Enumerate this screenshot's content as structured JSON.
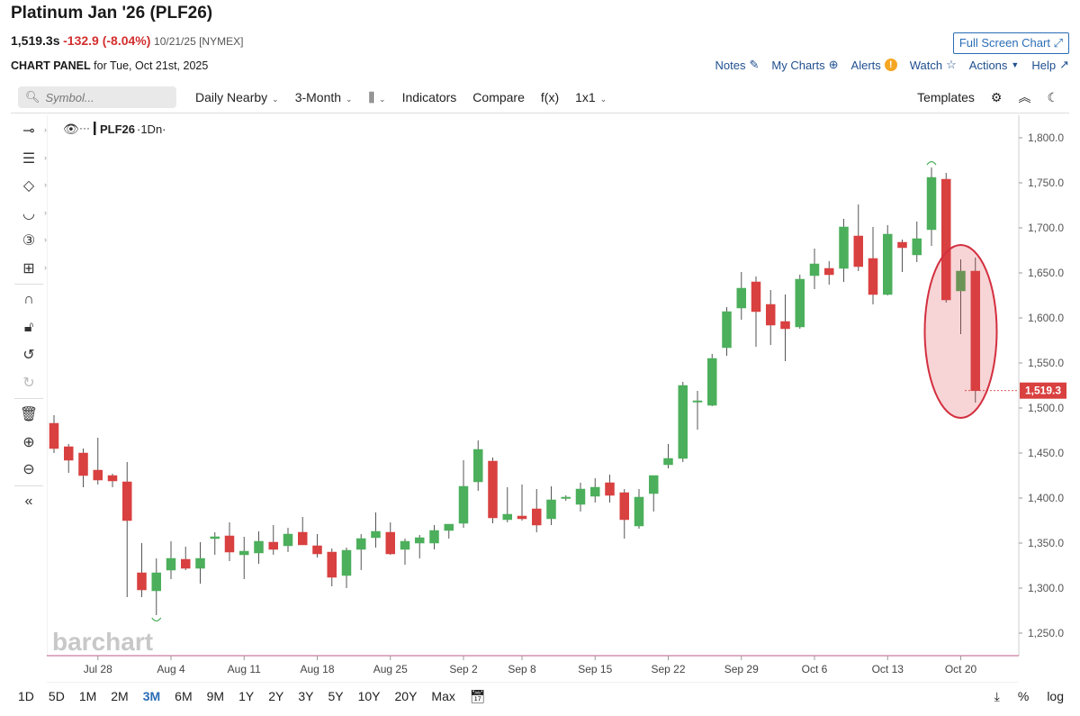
{
  "header": {
    "title": "Platinum Jan '26 (PLF26)",
    "last_price": "1,519.3s",
    "change": "-132.9 (-8.04%)",
    "date_exchange": "10/21/25 [NYMEX]",
    "full_screen_label": "Full Screen Chart",
    "panel_title": "CHART PANEL",
    "panel_date": "for Tue, Oct 21st, 2025"
  },
  "top_links": {
    "notes": "Notes",
    "my_charts": "My Charts",
    "alerts": "Alerts",
    "watch": "Watch",
    "actions": "Actions",
    "help": "Help"
  },
  "toolbar": {
    "symbol_placeholder": "Symbol...",
    "frequency": "Daily Nearby",
    "period": "3-Month",
    "indicators": "Indicators",
    "compare": "Compare",
    "fx": "f(x)",
    "layout": "1x1",
    "templates": "Templates"
  },
  "legend": {
    "symbol": "PLF26",
    "interval": "·1Dn·"
  },
  "bottom": {
    "ranges": [
      "1D",
      "5D",
      "1M",
      "2M",
      "3M",
      "6M",
      "9M",
      "1Y",
      "2Y",
      "3Y",
      "5Y",
      "10Y",
      "20Y",
      "Max"
    ],
    "active_range": "3M",
    "percent_label": "%",
    "log_label": "log"
  },
  "watermark": "barchart",
  "colors": {
    "up": "#4caf5c",
    "down": "#d94040",
    "accent": "#2a6db5",
    "price_tag": "#d94040",
    "ellipse": "#d32f3f"
  },
  "chart_data": {
    "type": "candlestick",
    "title": "Platinum Jan '26 (PLF26)",
    "ylim": [
      1225,
      1825
    ],
    "yticks": [
      1250,
      1300,
      1350,
      1400,
      1450,
      1500,
      1550,
      1600,
      1650,
      1700,
      1750,
      1800
    ],
    "ytick_labels": [
      "1,250.0",
      "1,300.0",
      "1,350.0",
      "1,400.0",
      "1,450.0",
      "1,500.0",
      "1,550.0",
      "1,600.0",
      "1,650.0",
      "1,700.0",
      "1,750.0",
      "1,800.0"
    ],
    "xtick_labels": [
      "Jul 28",
      "Aug 4",
      "Aug 11",
      "Aug 18",
      "Aug 25",
      "Sep 2",
      "Sep 8",
      "Sep 15",
      "Sep 22",
      "Sep 29",
      "Oct 6",
      "Oct 13",
      "Oct 20"
    ],
    "xtick_index": [
      3,
      8,
      13,
      18,
      23,
      28,
      32,
      37,
      42,
      47,
      52,
      57,
      62
    ],
    "last_value_label": "1,519.3",
    "last_value": 1519.3,
    "candles": [
      {
        "o": 1483,
        "h": 1492,
        "l": 1450,
        "c": 1455
      },
      {
        "o": 1457,
        "h": 1460,
        "l": 1428,
        "c": 1442
      },
      {
        "o": 1450,
        "h": 1455,
        "l": 1412,
        "c": 1425
      },
      {
        "o": 1431,
        "h": 1467,
        "l": 1415,
        "c": 1420
      },
      {
        "o": 1425,
        "h": 1427,
        "l": 1412,
        "c": 1419
      },
      {
        "o": 1418,
        "h": 1440,
        "l": 1290,
        "c": 1375
      },
      {
        "o": 1317,
        "h": 1350,
        "l": 1290,
        "c": 1298
      },
      {
        "o": 1297,
        "h": 1333,
        "l": 1270,
        "c": 1317
      },
      {
        "o": 1320,
        "h": 1352,
        "l": 1310,
        "c": 1333
      },
      {
        "o": 1332,
        "h": 1346,
        "l": 1320,
        "c": 1322
      },
      {
        "o": 1322,
        "h": 1351,
        "l": 1305,
        "c": 1333
      },
      {
        "o": 1355,
        "h": 1362,
        "l": 1337,
        "c": 1357
      },
      {
        "o": 1358,
        "h": 1373,
        "l": 1330,
        "c": 1340
      },
      {
        "o": 1337,
        "h": 1357,
        "l": 1310,
        "c": 1341
      },
      {
        "o": 1339,
        "h": 1363,
        "l": 1327,
        "c": 1352
      },
      {
        "o": 1351,
        "h": 1370,
        "l": 1337,
        "c": 1343
      },
      {
        "o": 1347,
        "h": 1367,
        "l": 1340,
        "c": 1360
      },
      {
        "o": 1362,
        "h": 1379,
        "l": 1348,
        "c": 1348
      },
      {
        "o": 1347,
        "h": 1360,
        "l": 1334,
        "c": 1338
      },
      {
        "o": 1340,
        "h": 1344,
        "l": 1302,
        "c": 1312
      },
      {
        "o": 1314,
        "h": 1345,
        "l": 1300,
        "c": 1342
      },
      {
        "o": 1343,
        "h": 1360,
        "l": 1320,
        "c": 1355
      },
      {
        "o": 1356,
        "h": 1384,
        "l": 1345,
        "c": 1363
      },
      {
        "o": 1362,
        "h": 1373,
        "l": 1337,
        "c": 1338
      },
      {
        "o": 1343,
        "h": 1355,
        "l": 1326,
        "c": 1352
      },
      {
        "o": 1350,
        "h": 1359,
        "l": 1333,
        "c": 1356
      },
      {
        "o": 1350,
        "h": 1370,
        "l": 1343,
        "c": 1364
      },
      {
        "o": 1364,
        "h": 1370,
        "l": 1355,
        "c": 1371
      },
      {
        "o": 1372,
        "h": 1442,
        "l": 1367,
        "c": 1413
      },
      {
        "o": 1418,
        "h": 1464,
        "l": 1408,
        "c": 1454
      },
      {
        "o": 1441,
        "h": 1445,
        "l": 1372,
        "c": 1378
      },
      {
        "o": 1376,
        "h": 1412,
        "l": 1373,
        "c": 1382
      },
      {
        "o": 1380,
        "h": 1415,
        "l": 1375,
        "c": 1377
      },
      {
        "o": 1388,
        "h": 1410,
        "l": 1362,
        "c": 1370
      },
      {
        "o": 1377,
        "h": 1413,
        "l": 1370,
        "c": 1398
      },
      {
        "o": 1400,
        "h": 1403,
        "l": 1397,
        "c": 1401
      },
      {
        "o": 1393,
        "h": 1417,
        "l": 1385,
        "c": 1410
      },
      {
        "o": 1402,
        "h": 1422,
        "l": 1395,
        "c": 1412
      },
      {
        "o": 1417,
        "h": 1426,
        "l": 1395,
        "c": 1403
      },
      {
        "o": 1406,
        "h": 1410,
        "l": 1355,
        "c": 1376
      },
      {
        "o": 1369,
        "h": 1410,
        "l": 1366,
        "c": 1401
      },
      {
        "o": 1405,
        "h": 1421,
        "l": 1385,
        "c": 1425
      },
      {
        "o": 1437,
        "h": 1460,
        "l": 1433,
        "c": 1444
      },
      {
        "o": 1444,
        "h": 1529,
        "l": 1440,
        "c": 1525
      },
      {
        "o": 1508,
        "h": 1519,
        "l": 1476,
        "c": 1508
      },
      {
        "o": 1503,
        "h": 1560,
        "l": 1502,
        "c": 1555
      },
      {
        "o": 1567,
        "h": 1612,
        "l": 1558,
        "c": 1607
      },
      {
        "o": 1611,
        "h": 1651,
        "l": 1598,
        "c": 1633
      },
      {
        "o": 1640,
        "h": 1646,
        "l": 1568,
        "c": 1607
      },
      {
        "o": 1615,
        "h": 1631,
        "l": 1570,
        "c": 1592
      },
      {
        "o": 1596,
        "h": 1626,
        "l": 1552,
        "c": 1588
      },
      {
        "o": 1590,
        "h": 1648,
        "l": 1588,
        "c": 1643
      },
      {
        "o": 1647,
        "h": 1677,
        "l": 1632,
        "c": 1660
      },
      {
        "o": 1655,
        "h": 1663,
        "l": 1637,
        "c": 1648
      },
      {
        "o": 1655,
        "h": 1710,
        "l": 1640,
        "c": 1701
      },
      {
        "o": 1691,
        "h": 1726,
        "l": 1652,
        "c": 1657
      },
      {
        "o": 1666,
        "h": 1701,
        "l": 1615,
        "c": 1626
      },
      {
        "o": 1626,
        "h": 1703,
        "l": 1625,
        "c": 1693
      },
      {
        "o": 1684,
        "h": 1687,
        "l": 1651,
        "c": 1678
      },
      {
        "o": 1670,
        "h": 1707,
        "l": 1662,
        "c": 1688
      },
      {
        "o": 1698,
        "h": 1767,
        "l": 1680,
        "c": 1756
      },
      {
        "o": 1754,
        "h": 1761,
        "l": 1617,
        "c": 1620
      },
      {
        "o": 1630,
        "h": 1665,
        "l": 1582,
        "c": 1652
      },
      {
        "o": 1652,
        "h": 1667,
        "l": 1506,
        "c": 1519.3
      }
    ]
  }
}
